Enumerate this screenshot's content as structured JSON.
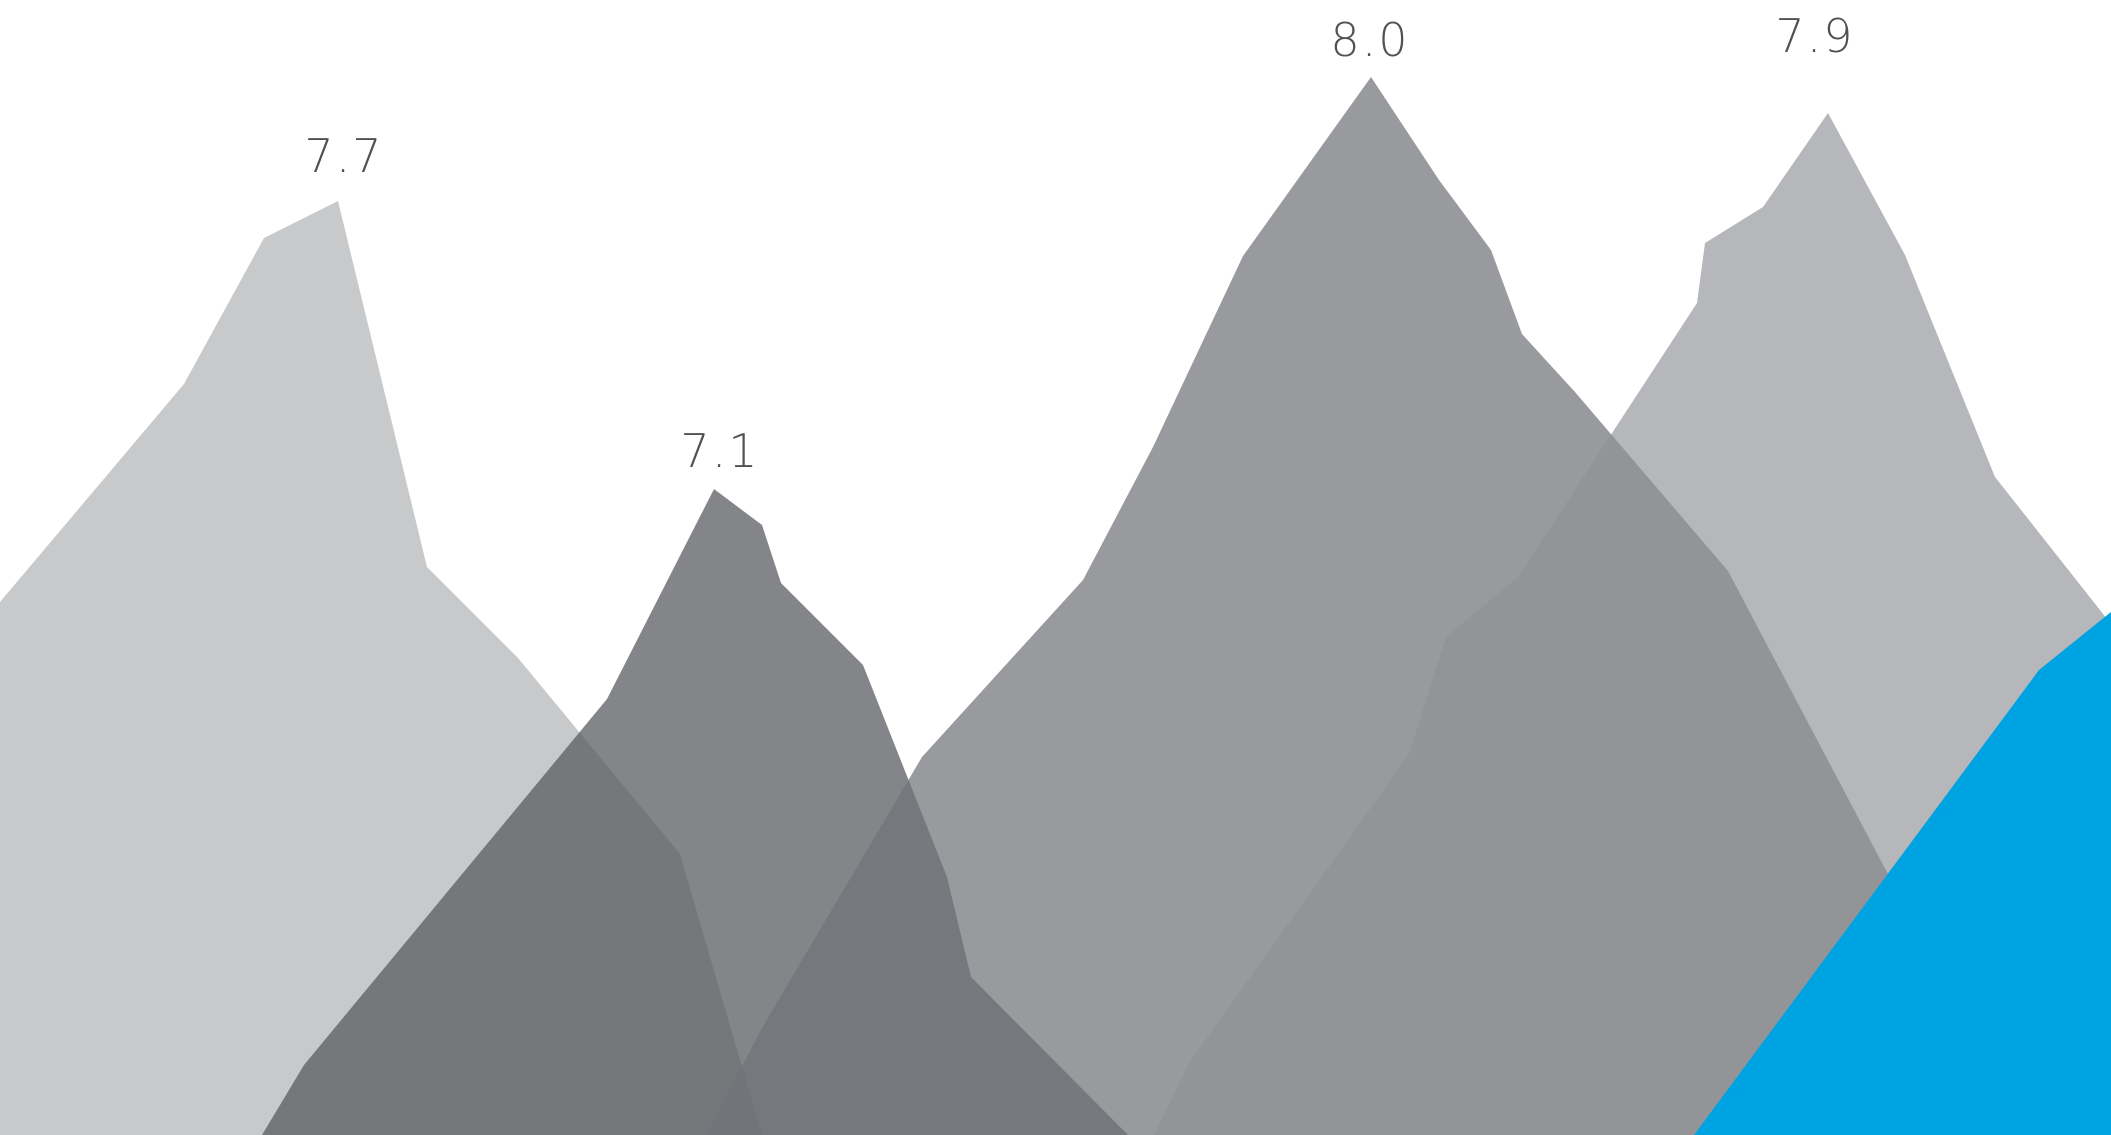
{
  "chart_data": {
    "type": "area",
    "peaks": [
      {
        "label": "7.7",
        "value": 7.7,
        "color": "#c8c9cb",
        "opacity": 1.0
      },
      {
        "label": "7.1",
        "value": 7.1,
        "color": "#5a5c60",
        "opacity": 0.75
      },
      {
        "label": "8.0",
        "value": 8.0,
        "color": "#717378",
        "opacity": 0.72
      },
      {
        "label": "7.9",
        "value": 7.9,
        "color": "#8f9095",
        "opacity": 0.65
      }
    ],
    "accent_color": "#00a3e2",
    "grid": false,
    "legend": "none"
  }
}
